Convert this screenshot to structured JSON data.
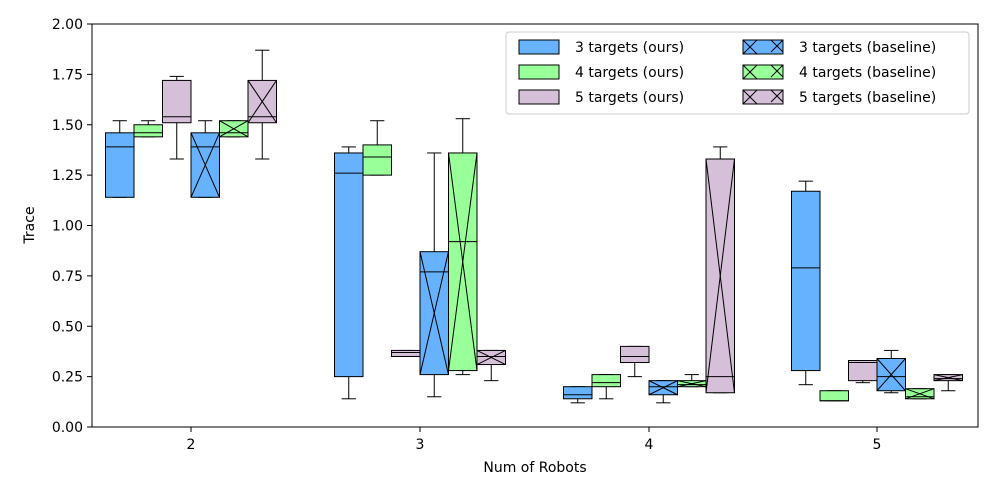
{
  "chart_data": {
    "type": "boxplot",
    "xlabel": "Num of Robots",
    "ylabel": "Trace",
    "ylim": [
      0,
      2.0
    ],
    "yticks": [
      "0.00",
      "0.25",
      "0.50",
      "0.75",
      "1.00",
      "1.25",
      "1.50",
      "1.75",
      "2.00"
    ],
    "categories": [
      "2",
      "3",
      "4",
      "5"
    ],
    "legend_position": "top-right",
    "series": [
      {
        "name": "3 targets (ours)",
        "color": "#66b2ff",
        "hatch": "none",
        "boxes": [
          {
            "whislo": 1.14,
            "q1": 1.14,
            "med": 1.39,
            "q3": 1.46,
            "whishi": 1.52
          },
          {
            "whislo": 0.14,
            "q1": 0.25,
            "med": 1.26,
            "q3": 1.36,
            "whishi": 1.39
          },
          {
            "whislo": 0.12,
            "q1": 0.14,
            "med": 0.16,
            "q3": 0.2,
            "whishi": 0.2
          },
          {
            "whislo": 0.21,
            "q1": 0.28,
            "med": 0.79,
            "q3": 1.17,
            "whishi": 1.22
          }
        ]
      },
      {
        "name": "4 targets (ours)",
        "color": "#99ff99",
        "hatch": "none",
        "boxes": [
          {
            "whislo": 1.44,
            "q1": 1.44,
            "med": 1.46,
            "q3": 1.5,
            "whishi": 1.52
          },
          {
            "whislo": 1.25,
            "q1": 1.25,
            "med": 1.34,
            "q3": 1.4,
            "whishi": 1.52
          },
          {
            "whislo": 0.14,
            "q1": 0.2,
            "med": 0.22,
            "q3": 0.26,
            "whishi": 0.26
          },
          {
            "whislo": 0.13,
            "q1": 0.13,
            "med": 0.13,
            "q3": 0.18,
            "whishi": 0.18
          }
        ]
      },
      {
        "name": "5 targets (ours)",
        "color": "#d5bfd9",
        "hatch": "none",
        "boxes": [
          {
            "whislo": 1.33,
            "q1": 1.51,
            "med": 1.54,
            "q3": 1.72,
            "whishi": 1.74
          },
          {
            "whislo": 0.35,
            "q1": 0.35,
            "med": 0.37,
            "q3": 0.38,
            "whishi": 0.38
          },
          {
            "whislo": 0.25,
            "q1": 0.32,
            "med": 0.35,
            "q3": 0.4,
            "whishi": 0.4
          },
          {
            "whislo": 0.22,
            "q1": 0.23,
            "med": 0.32,
            "q3": 0.33,
            "whishi": 0.33
          }
        ]
      },
      {
        "name": "3 targets (baseline)",
        "color": "#66b2ff",
        "hatch": "x",
        "boxes": [
          {
            "whislo": 1.14,
            "q1": 1.14,
            "med": 1.39,
            "q3": 1.46,
            "whishi": 1.52
          },
          {
            "whislo": 0.15,
            "q1": 0.26,
            "med": 0.77,
            "q3": 0.87,
            "whishi": 1.36
          },
          {
            "whislo": 0.12,
            "q1": 0.16,
            "med": 0.2,
            "q3": 0.23,
            "whishi": 0.23
          },
          {
            "whislo": 0.17,
            "q1": 0.18,
            "med": 0.25,
            "q3": 0.34,
            "whishi": 0.38
          }
        ]
      },
      {
        "name": "4 targets (baseline)",
        "color": "#99ff99",
        "hatch": "x",
        "boxes": [
          {
            "whislo": 1.44,
            "q1": 1.44,
            "med": 1.46,
            "q3": 1.52,
            "whishi": 1.52
          },
          {
            "whislo": 0.26,
            "q1": 0.28,
            "med": 0.92,
            "q3": 1.36,
            "whishi": 1.53
          },
          {
            "whislo": 0.2,
            "q1": 0.2,
            "med": 0.21,
            "q3": 0.23,
            "whishi": 0.26
          },
          {
            "whislo": 0.14,
            "q1": 0.14,
            "med": 0.15,
            "q3": 0.19,
            "whishi": 0.19
          }
        ]
      },
      {
        "name": "5 targets (baseline)",
        "color": "#d5bfd9",
        "hatch": "x",
        "boxes": [
          {
            "whislo": 1.33,
            "q1": 1.51,
            "med": 1.54,
            "q3": 1.72,
            "whishi": 1.87
          },
          {
            "whislo": 0.23,
            "q1": 0.31,
            "med": 0.35,
            "q3": 0.38,
            "whishi": 0.38
          },
          {
            "whislo": 0.17,
            "q1": 0.17,
            "med": 0.25,
            "q3": 1.33,
            "whishi": 1.39
          },
          {
            "whislo": 0.18,
            "q1": 0.23,
            "med": 0.24,
            "q3": 0.26,
            "whishi": 0.26
          }
        ]
      }
    ]
  }
}
